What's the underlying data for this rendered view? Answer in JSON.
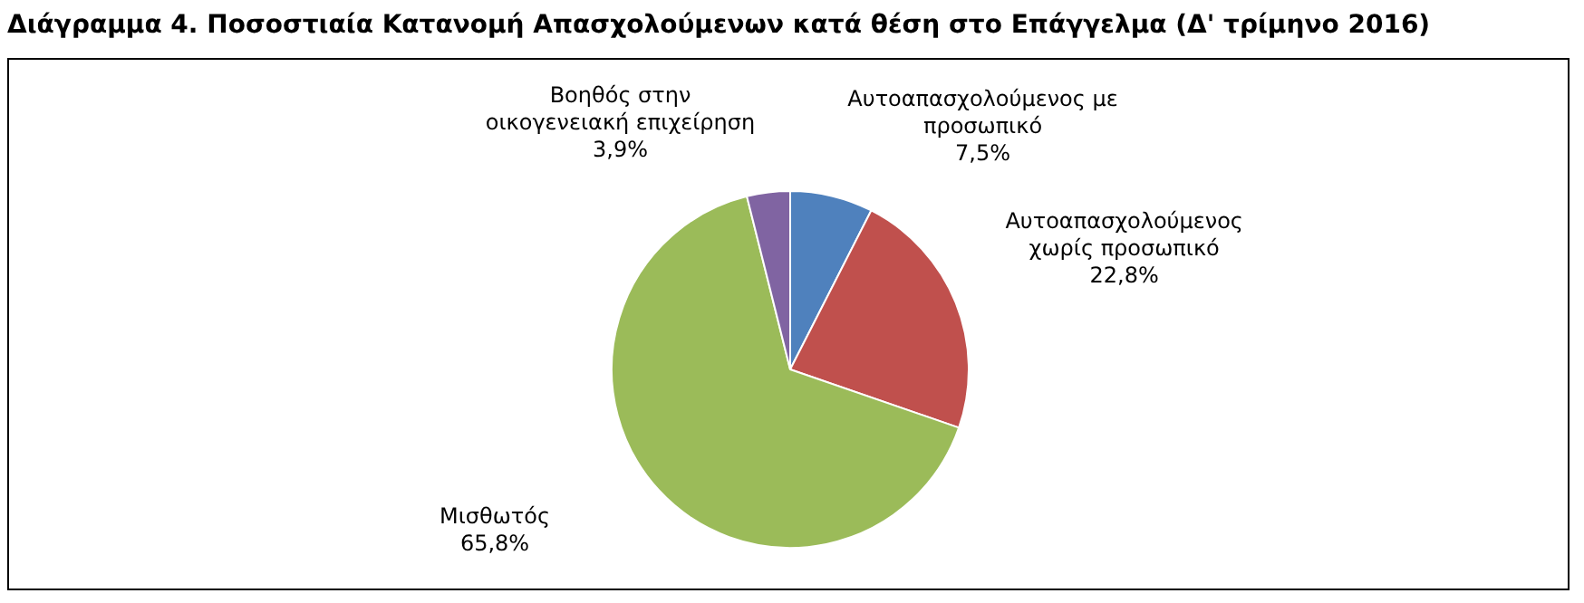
{
  "chart_data": {
    "type": "pie",
    "title": "Διάγραμμα 4. Ποσοστιαία Κατανομή Απασχολούμενων κατά θέση στο Επάγγελμα (Δ' τρίμηνο 2016)",
    "categories": [
      "Αυτοαπασχολούμενος με προσωπικό",
      "Αυτοαπασχολούμενος χωρίς προσωπικό",
      "Μισθωτός",
      "Βοηθός στην οικογενειακή επιχείρηση"
    ],
    "values": [
      7.5,
      22.8,
      65.8,
      3.9
    ],
    "value_labels": [
      "7,5%",
      "22,8%",
      "65,8%",
      "3,9%"
    ],
    "colors": [
      "#4f81bd",
      "#c0504d",
      "#9bbb59",
      "#8064a2"
    ],
    "legend": false
  }
}
